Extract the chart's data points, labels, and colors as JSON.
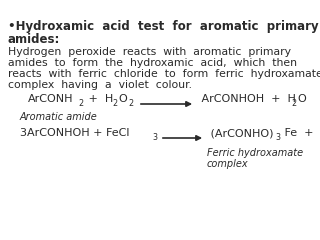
{
  "bg_color": "#ffffff",
  "text_color": "#2a2a2a",
  "title_line1": "•Hydroxamic  acid  test  for  aromatic  primary",
  "title_line2": "amides:",
  "body_line1": "Hydrogen  peroxide  reacts  with  aromatic  primary",
  "body_line2": "amides  to  form  the  hydroxamic  acid,  which  then",
  "body_line3": "reacts  with  ferric  chloride  to  form  ferric  hydroxamate",
  "body_line4": "complex  having  a  violet  colour.",
  "eq1_label": "Aromatic amide",
  "eq2_label1": "Ferric hydroxamate",
  "eq2_label2": "complex",
  "fs_title": 8.5,
  "fs_body": 7.8,
  "fs_eq": 8.0,
  "fs_sub": 5.8,
  "fs_label": 7.0
}
